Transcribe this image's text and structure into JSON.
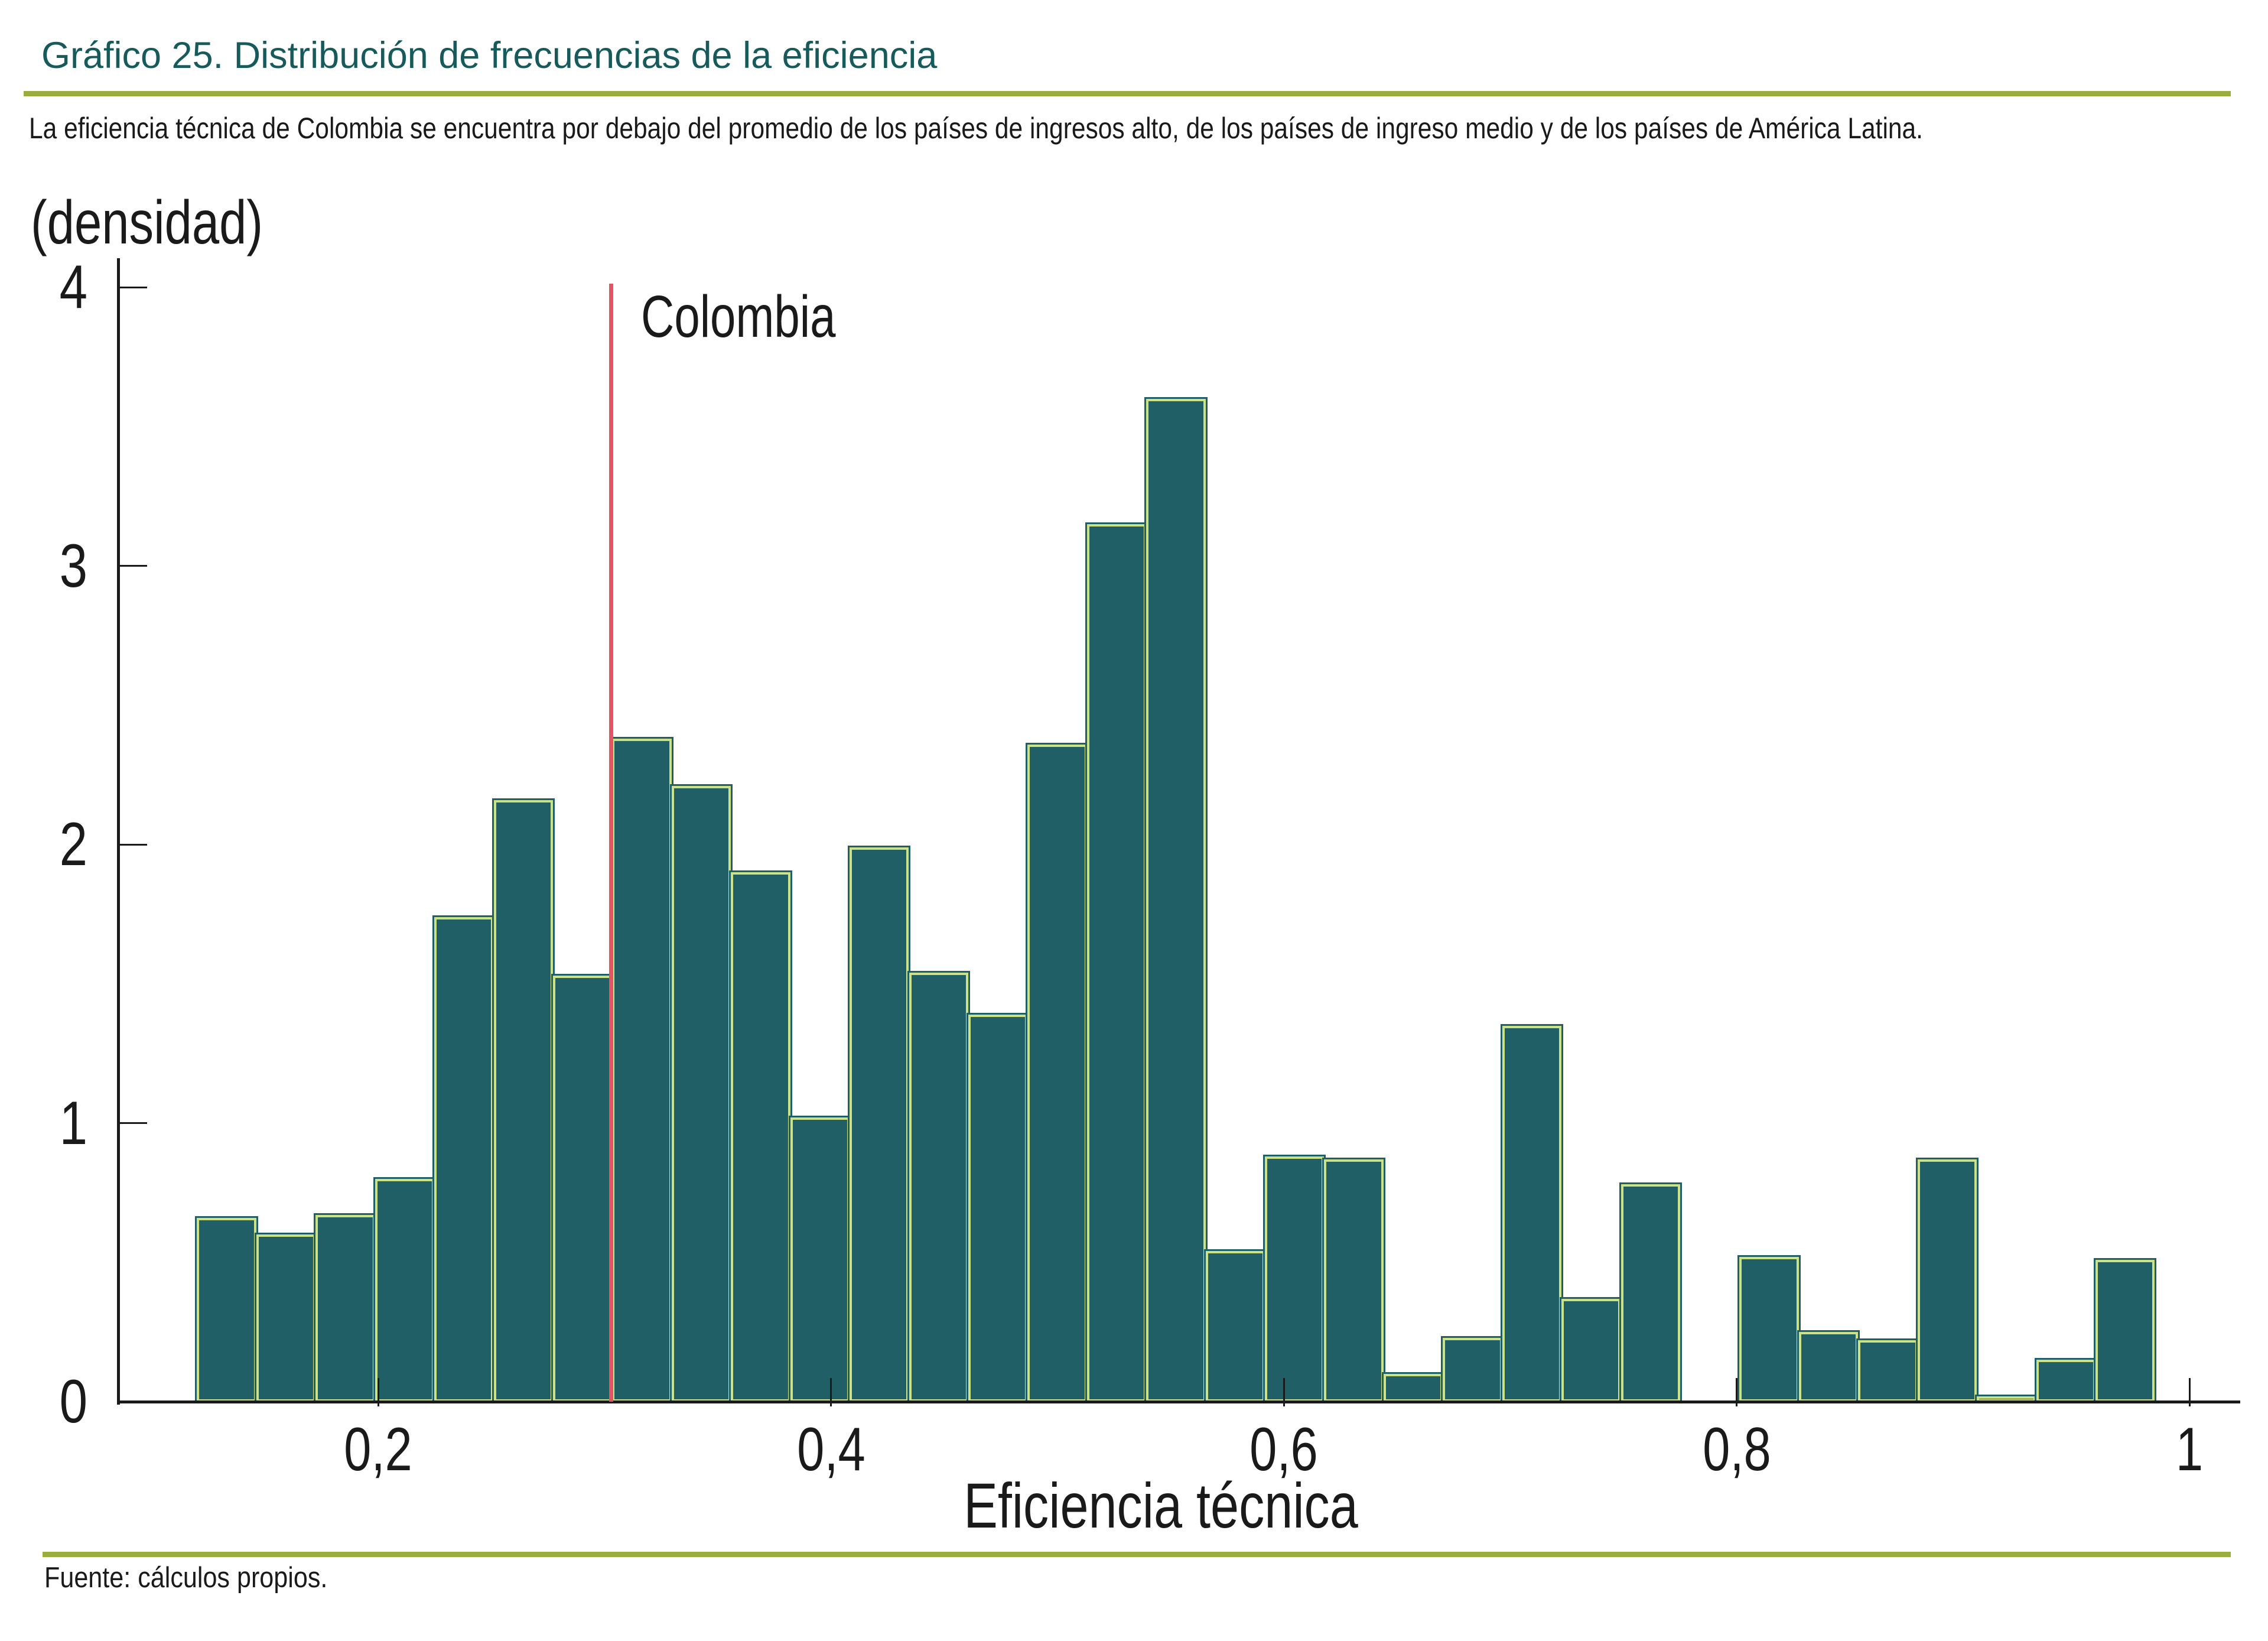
{
  "header": {
    "title": "Gráfico 25. Distribución de frecuencias de la eficiencia",
    "subtitle": "La eficiencia técnica de Colombia se encuentra por debajo del promedio de los países de ingresos alto, de los países de ingreso medio y de los países de América Latina."
  },
  "footer": {
    "source": "Fuente: cálculos propios."
  },
  "colors": {
    "title": "#175a5c",
    "rule": "#9aae3e",
    "bar_fill": "#215f66",
    "bar_border": "#cde287",
    "reference_line": "#e25562",
    "axis": "#1a1a1a",
    "text": "#1a1a1a"
  },
  "chart_data": {
    "type": "bar",
    "kind": "histogram",
    "title": "",
    "xlabel": "Eficiencia técnica",
    "ylabel": "(densidad)",
    "ylim": [
      0,
      4
    ],
    "xlim": [
      0.085,
      1.022
    ],
    "grid": false,
    "legend": "none",
    "y_ticks": [
      {
        "value": 0,
        "label": "0"
      },
      {
        "value": 1,
        "label": "1"
      },
      {
        "value": 2,
        "label": "2"
      },
      {
        "value": 3,
        "label": "3"
      },
      {
        "value": 4,
        "label": "4"
      }
    ],
    "x_ticks": [
      {
        "value": 0.2,
        "label": "0,2"
      },
      {
        "value": 0.4,
        "label": "0,4"
      },
      {
        "value": 0.6,
        "label": "0,6"
      },
      {
        "value": 0.8,
        "label": "0,8"
      },
      {
        "value": 1.0,
        "label": "1"
      }
    ],
    "bin_start": 0.12,
    "bin_width": 0.0262,
    "densities": [
      0.66,
      0.6,
      0.67,
      0.8,
      1.74,
      2.16,
      1.53,
      2.38,
      2.21,
      1.9,
      1.02,
      1.99,
      1.54,
      1.39,
      2.36,
      3.15,
      3.6,
      0.54,
      0.88,
      0.87,
      0.1,
      0.23,
      1.35,
      0.37,
      0.78,
      0,
      0.52,
      0.25,
      0.22,
      0.87,
      0.02,
      0.15,
      0.51
    ],
    "reference_line": {
      "value": 0.303,
      "label": "Colombia"
    }
  }
}
